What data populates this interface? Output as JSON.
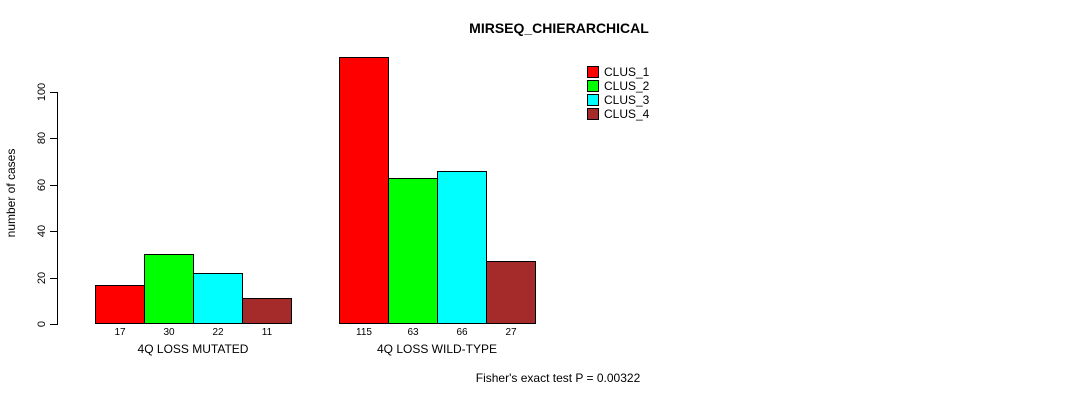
{
  "chart_data": {
    "type": "bar",
    "title": "MIRSEQ_CHIERARCHICAL",
    "ylabel": "number of cases",
    "xlabel": "",
    "ylim": [
      0,
      120
    ],
    "yticks": [
      0,
      20,
      40,
      60,
      80,
      100
    ],
    "grid": false,
    "legend_position": "top-right",
    "categories": [
      "4Q LOSS MUTATED",
      "4Q LOSS WILD-TYPE"
    ],
    "series": [
      {
        "name": "CLUS_1",
        "color": "#FF0000",
        "values": [
          17,
          115
        ]
      },
      {
        "name": "CLUS_2",
        "color": "#00FF00",
        "values": [
          30,
          63
        ]
      },
      {
        "name": "CLUS_3",
        "color": "#00FFFF",
        "values": [
          22,
          66
        ]
      },
      {
        "name": "CLUS_4",
        "color": "#A52A2A",
        "values": [
          11,
          27
        ]
      }
    ],
    "annotation": "Fisher's exact test P = 0.00322"
  }
}
